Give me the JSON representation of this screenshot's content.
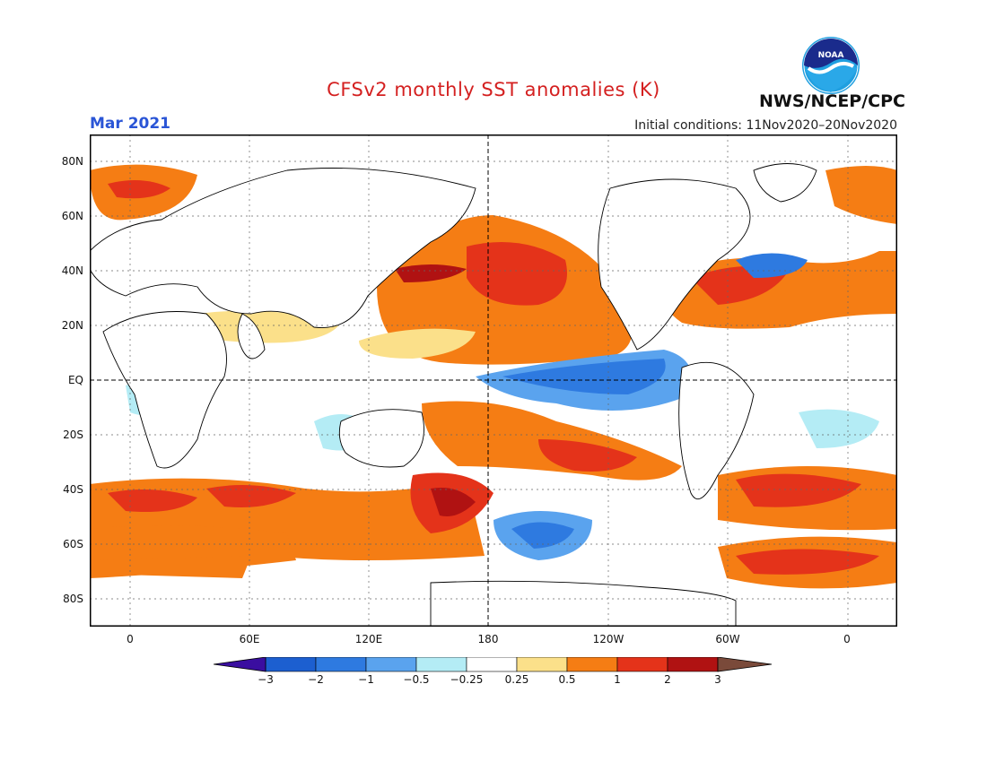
{
  "title": "CFSv2 monthly SST anomalies (K)",
  "valid_month": "Mar 2021",
  "initial_conditions": "Initial conditions: 11Nov2020–20Nov2020",
  "agency": "NWS/NCEP/CPC",
  "logo_text": "NOAA",
  "colors": {
    "title": "#d42020",
    "month_label": "#2a55d6",
    "land": "#ffffff",
    "coast": "#000000",
    "grid": "#666666"
  },
  "lat_labels": [
    "80N",
    "60N",
    "40N",
    "20N",
    "EQ",
    "20S",
    "40S",
    "60S",
    "80S"
  ],
  "lon_labels": [
    "0",
    "60E",
    "120E",
    "180",
    "120W",
    "60W",
    "0"
  ],
  "colorbar": {
    "labels": [
      "−3",
      "−2",
      "−1",
      "−0.5",
      "−0.25",
      "0.25",
      "0.5",
      "1",
      "2",
      "3"
    ],
    "low_end_color": "#3a0ea0",
    "high_end_color": "#7a4a3a",
    "bin_colors": [
      "#1c5fd0",
      "#2e7ae0",
      "#5aa3ee",
      "#b4ecf5",
      "#ffffff",
      "#fbe08a",
      "#f57d14",
      "#e4331a",
      "#b01212"
    ]
  }
}
